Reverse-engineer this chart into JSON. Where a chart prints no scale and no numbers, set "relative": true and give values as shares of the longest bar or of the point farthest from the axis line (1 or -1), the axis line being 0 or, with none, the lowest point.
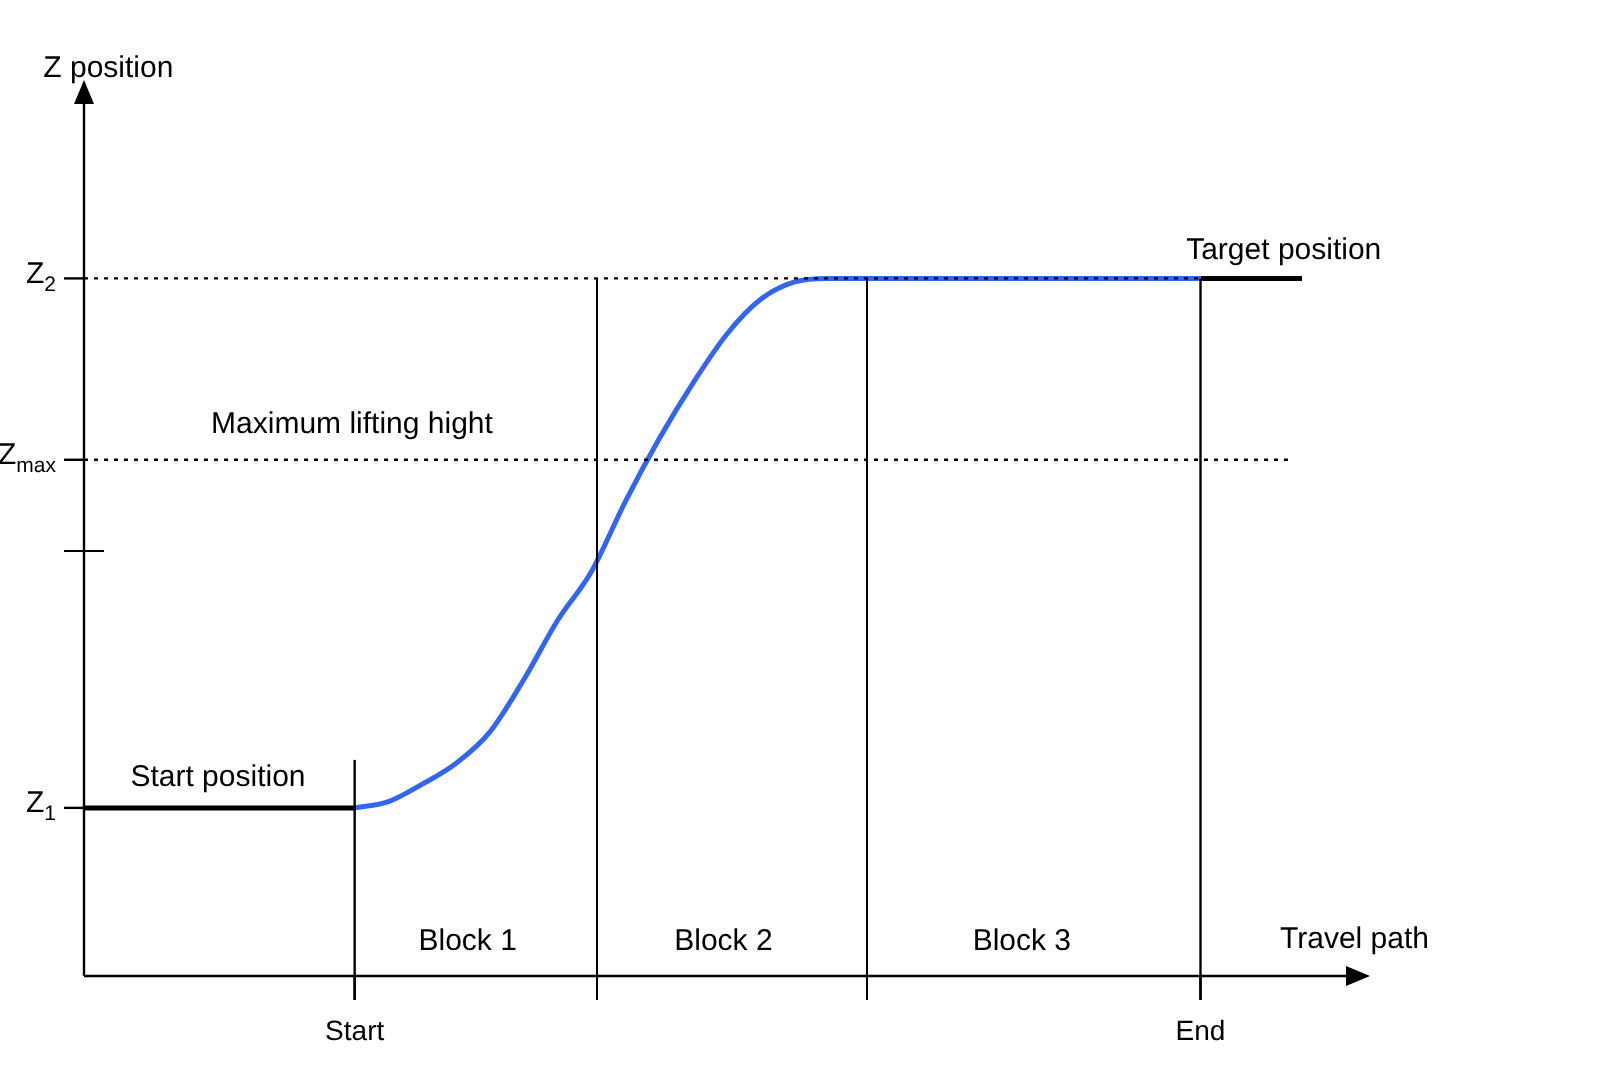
{
  "chart_data": {
    "type": "line",
    "xlabel": "Travel path",
    "relative": true,
    "categories": [
      null,
      null,
      null,
      null,
      null,
      null,
      null,
      null,
      "Start",
      null,
      null,
      null,
      null,
      null,
      null,
      null,
      null,
      null,
      null,
      null,
      null,
      null,
      null,
      null,
      null,
      null,
      null,
      null,
      null,
      null,
      null,
      null,
      null,
      "End",
      null,
      null,
      null
    ],
    "series": [
      {
        "color": "#000000",
        "values": [
          0.241,
          0.241,
          0.241,
          0.241,
          0.241,
          0.241,
          0.241,
          0.241,
          0.241,
          null,
          null,
          null,
          null,
          null,
          null,
          null,
          null,
          null,
          null,
          null,
          null,
          null,
          null,
          null,
          null,
          null,
          null,
          null,
          null,
          null,
          null,
          null,
          null,
          null,
          null,
          null,
          null
        ]
      },
      {
        "color": "#3366ee",
        "values": [
          null,
          null,
          null,
          null,
          null,
          null,
          null,
          null,
          0.241,
          0.25,
          0.275,
          0.305,
          0.35,
          0.425,
          0.51,
          0.58,
          0.68,
          0.77,
          0.85,
          0.92,
          0.97,
          0.995,
          1,
          1,
          1,
          1,
          1,
          1,
          1,
          1,
          1,
          1,
          1,
          1,
          null,
          null,
          null
        ]
      },
      {
        "color": "#000000",
        "values": [
          null,
          null,
          null,
          null,
          null,
          null,
          null,
          null,
          null,
          null,
          null,
          null,
          null,
          null,
          null,
          null,
          null,
          null,
          null,
          null,
          null,
          null,
          null,
          null,
          null,
          null,
          null,
          null,
          null,
          null,
          null,
          null,
          null,
          1,
          1,
          1,
          1
        ]
      }
    ],
    "ref_lines": [
      {
        "axis": "y",
        "value": 1,
        "label": "Z$_{2}$",
        "line_style": "dotted"
      },
      {
        "axis": "y",
        "value": 0.74,
        "label": "Z$_{max}$",
        "line_style": "dotted"
      },
      {
        "axis": "y",
        "value": 0.241,
        "label": "Z$_{1}$"
      },
      {
        "axis": "x",
        "value": "Start",
        "label": null
      },
      {
        "axis": "x",
        "value": "End",
        "label": null
      }
    ],
    "annotations": [
      "Start position",
      "Maximum lifting hight",
      "Target position",
      "Block 1",
      "Block 2",
      "Block 3",
      "Z position"
    ],
    "marker": "none",
    "line_style": "solid"
  }
}
